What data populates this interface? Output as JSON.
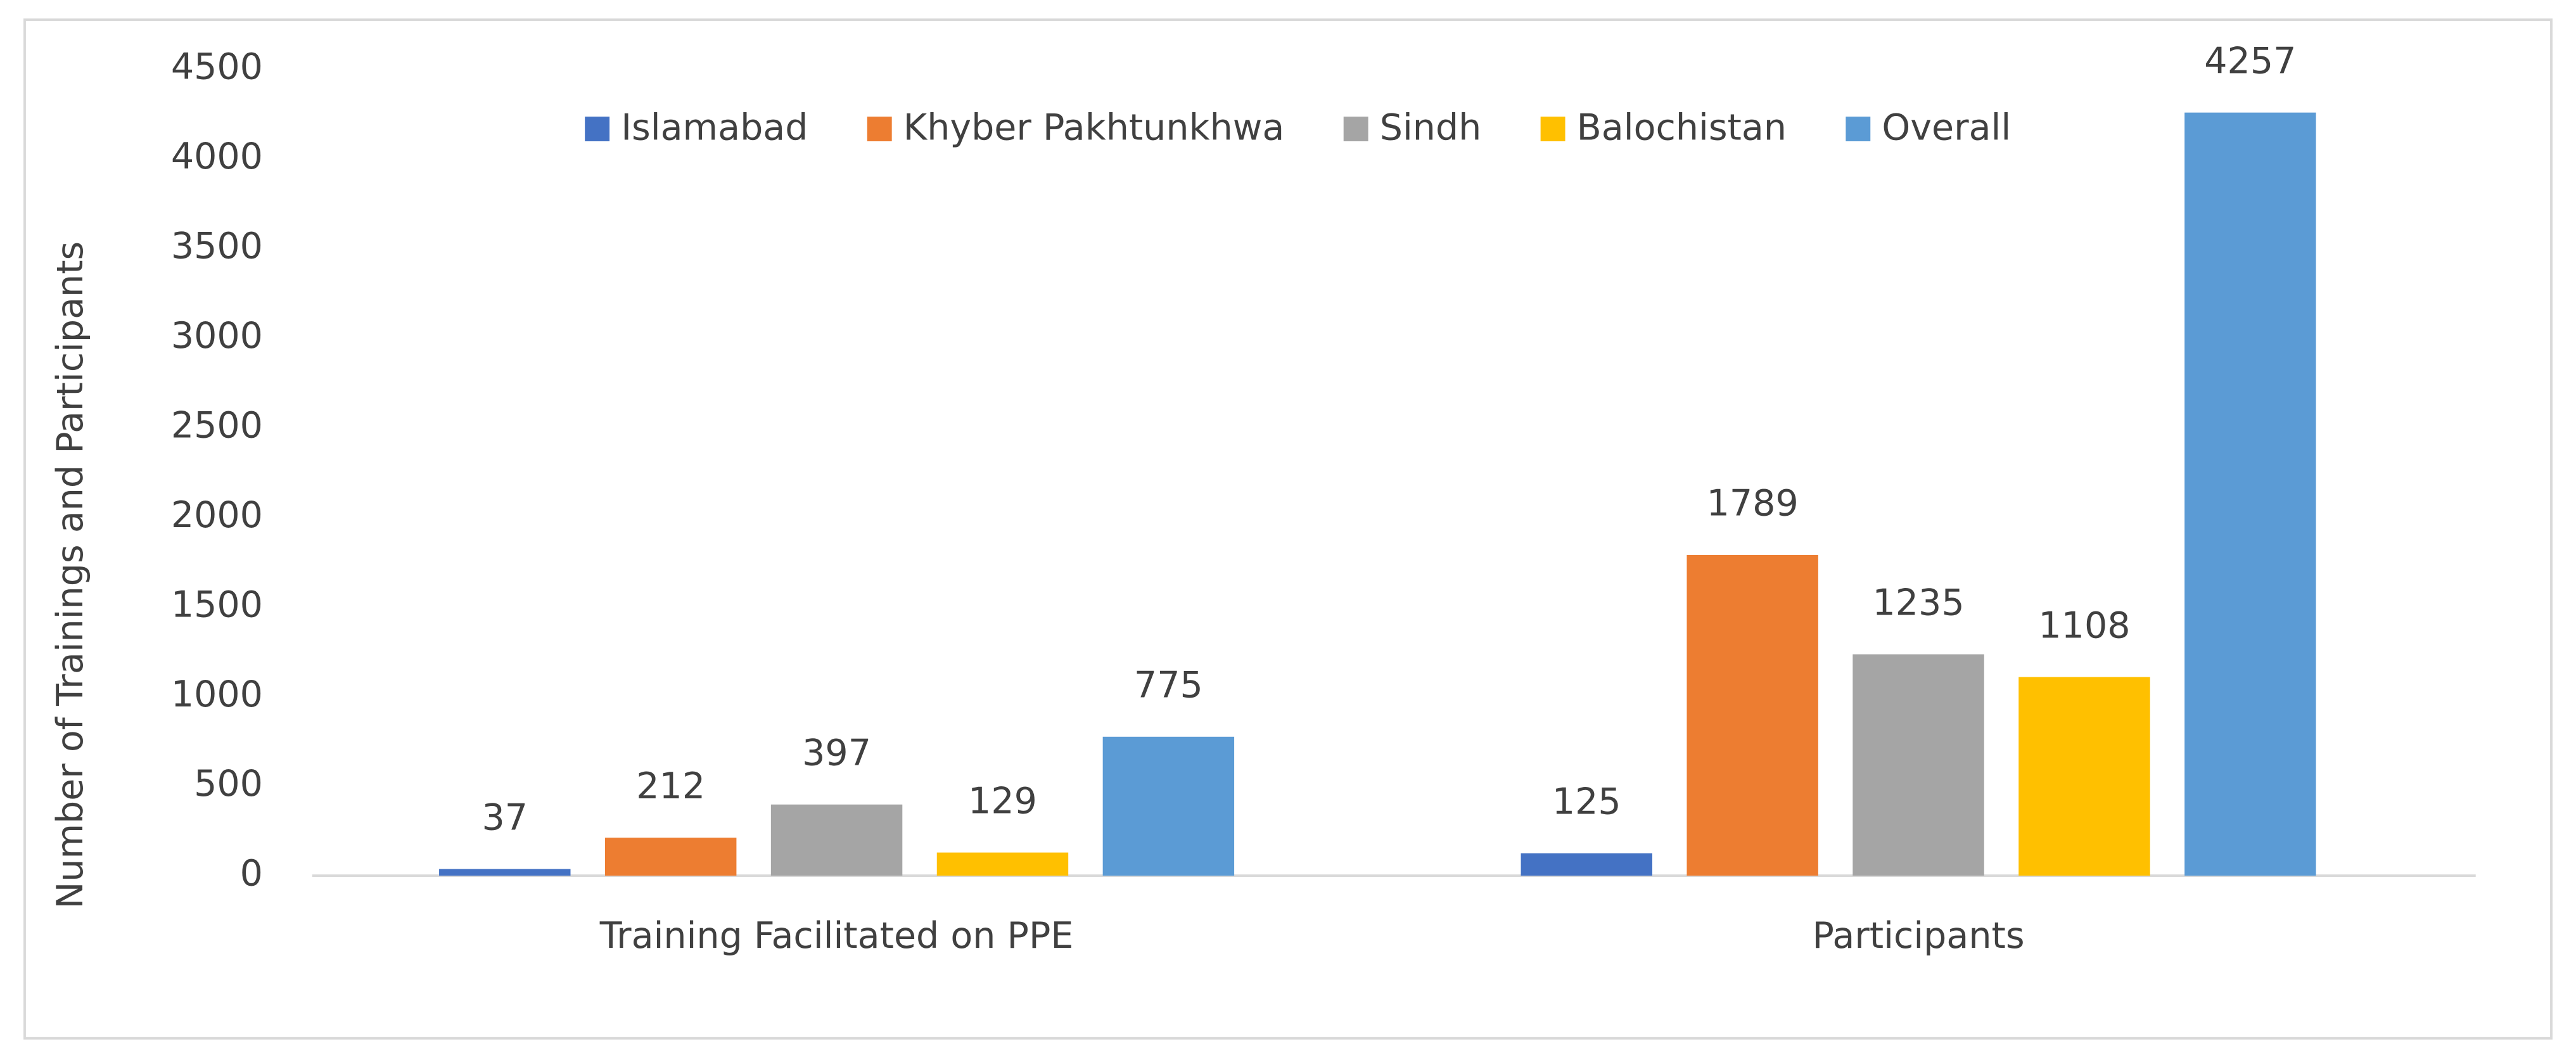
{
  "chart_data": {
    "type": "bar",
    "y_label": "Number of Trainings and Participants",
    "categories": [
      "Training Facilitated on PPE",
      "Participants"
    ],
    "series": [
      {
        "name": "Islamabad",
        "color": "#4472c4",
        "values": [
          37,
          125
        ]
      },
      {
        "name": "Khyber Pakhtunkhwa",
        "color": "#ed7d31",
        "values": [
          212,
          1789
        ]
      },
      {
        "name": "Sindh",
        "color": "#a5a5a5",
        "values": [
          397,
          1235
        ]
      },
      {
        "name": "Balochistan",
        "color": "#ffc000",
        "values": [
          129,
          1108
        ]
      },
      {
        "name": "Overall",
        "color": "#5b9bd5",
        "values": [
          775,
          4257
        ]
      }
    ],
    "ylim": [
      0,
      4500
    ],
    "yticks": [
      0,
      500,
      1000,
      1500,
      2000,
      2500,
      3000,
      3500,
      4000,
      4500
    ],
    "grid": false,
    "legend": "top"
  }
}
